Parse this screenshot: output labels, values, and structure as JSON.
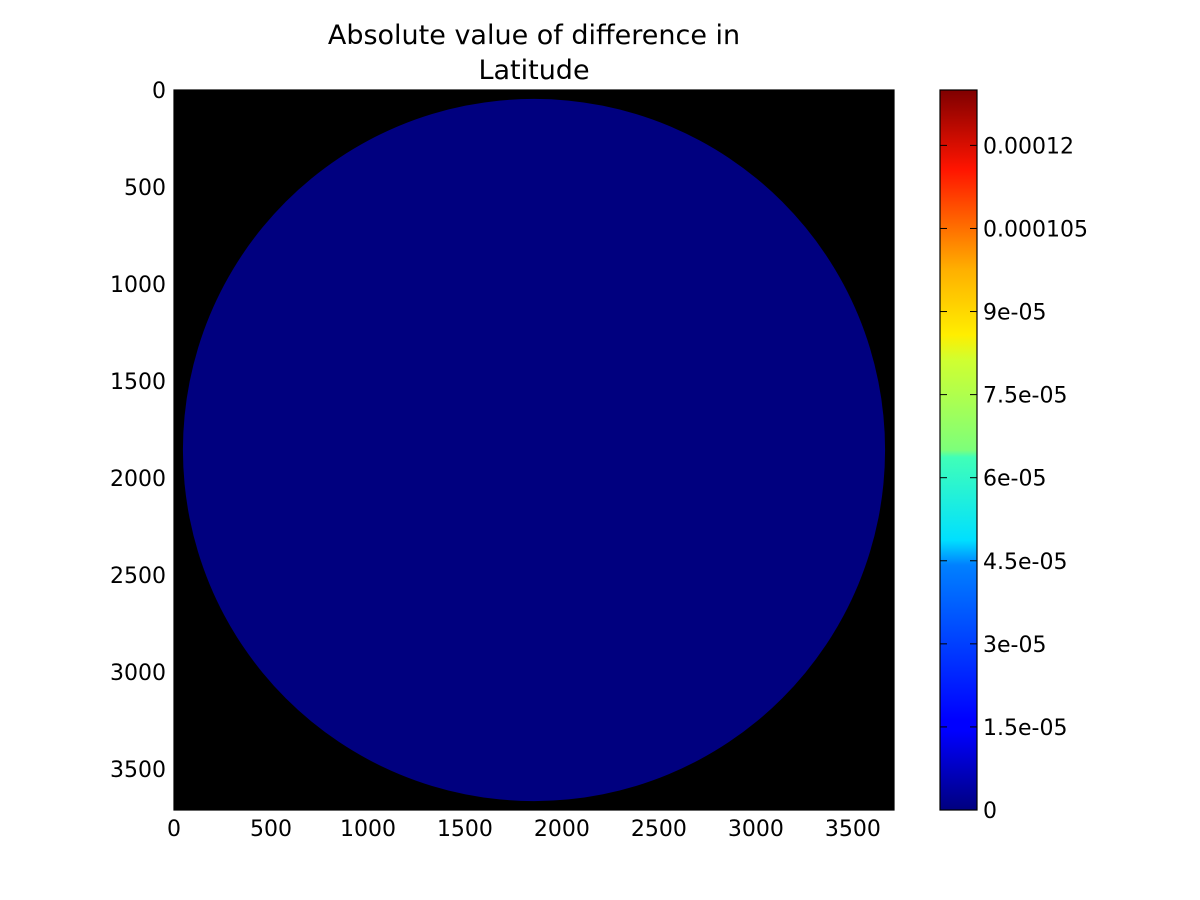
{
  "chart_data": {
    "type": "heatmap",
    "title_lines": [
      "Absolute value of difference in",
      "Latitude"
    ],
    "xlabel": "",
    "ylabel": "",
    "image": {
      "x_range": [
        0,
        3712
      ],
      "y_range": [
        0,
        3712
      ],
      "y_inverted": true,
      "background_color": "#000000",
      "disk": {
        "center_x": 1856,
        "center_y": 1856,
        "radius": 1810,
        "value": 0,
        "color": "#00007f"
      }
    },
    "x_ticks": [
      {
        "value": 0,
        "label": "0"
      },
      {
        "value": 500,
        "label": "500"
      },
      {
        "value": 1000,
        "label": "1000"
      },
      {
        "value": 1500,
        "label": "1500"
      },
      {
        "value": 2000,
        "label": "2000"
      },
      {
        "value": 2500,
        "label": "2500"
      },
      {
        "value": 3000,
        "label": "3000"
      },
      {
        "value": 3500,
        "label": "3500"
      }
    ],
    "y_ticks": [
      {
        "value": 0,
        "label": "0"
      },
      {
        "value": 500,
        "label": "500"
      },
      {
        "value": 1000,
        "label": "1000"
      },
      {
        "value": 1500,
        "label": "1500"
      },
      {
        "value": 2000,
        "label": "2000"
      },
      {
        "value": 2500,
        "label": "2500"
      },
      {
        "value": 3000,
        "label": "3000"
      },
      {
        "value": 3500,
        "label": "3500"
      }
    ],
    "colorbar": {
      "colormap": "jet",
      "range": [
        0,
        0.00013
      ],
      "ticks": [
        {
          "value": 0,
          "label": "0"
        },
        {
          "value": 1.5e-05,
          "label": "1.5e-05"
        },
        {
          "value": 3e-05,
          "label": "3e-05"
        },
        {
          "value": 4.5e-05,
          "label": "4.5e-05"
        },
        {
          "value": 6e-05,
          "label": "6e-05"
        },
        {
          "value": 7.5e-05,
          "label": "7.5e-05"
        },
        {
          "value": 9e-05,
          "label": "9e-05"
        },
        {
          "value": 0.000105,
          "label": "0.000105"
        },
        {
          "value": 0.00012,
          "label": "0.00012"
        }
      ]
    },
    "grid": false,
    "legend": "none"
  }
}
